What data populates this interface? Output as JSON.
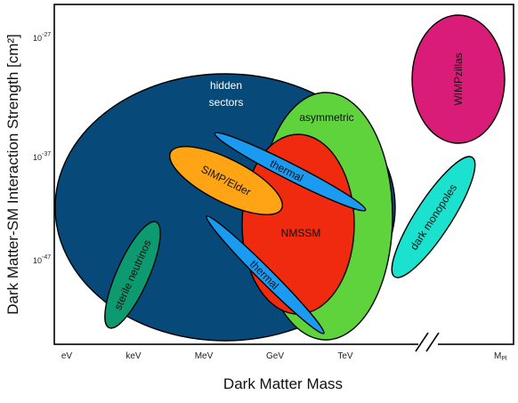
{
  "axes": {
    "y_title": "Dark Matter-SM Interaction Strength [cm²]",
    "x_title": "Dark Matter Mass",
    "y_ticks": [
      {
        "base": "10",
        "exp": "-27"
      },
      {
        "base": "10",
        "exp": "-37"
      },
      {
        "base": "10",
        "exp": "-47"
      }
    ],
    "x_ticks": [
      "eV",
      "keV",
      "MeV",
      "GeV",
      "TeV"
    ],
    "x_tick_planck": {
      "base": "M",
      "sub": "Pl"
    }
  },
  "regions": {
    "hidden_sectors": {
      "line1": "hidden",
      "line2": "sectors",
      "color": "#074a7a"
    },
    "asymmetric": {
      "label": "asymmetric",
      "color": "#5ed33c"
    },
    "nmssm": {
      "label": "NMSSM",
      "color": "#ef2a0e"
    },
    "simp_elder": {
      "label": "SIMP/Elder",
      "color": "#ffa515"
    },
    "thermal_upper": {
      "label": "thermal",
      "color": "#1a9af0"
    },
    "thermal_lower": {
      "label": "thermal",
      "color": "#1a9af0"
    },
    "sterile_neutrinos": {
      "label": "sterile neutrinos",
      "color": "#0e9a70"
    },
    "dark_monopoles": {
      "label": "dark monopoles",
      "color": "#1ae2cf"
    },
    "wimpzillas": {
      "label": "WIMPzillas",
      "color": "#d81c78"
    }
  }
}
